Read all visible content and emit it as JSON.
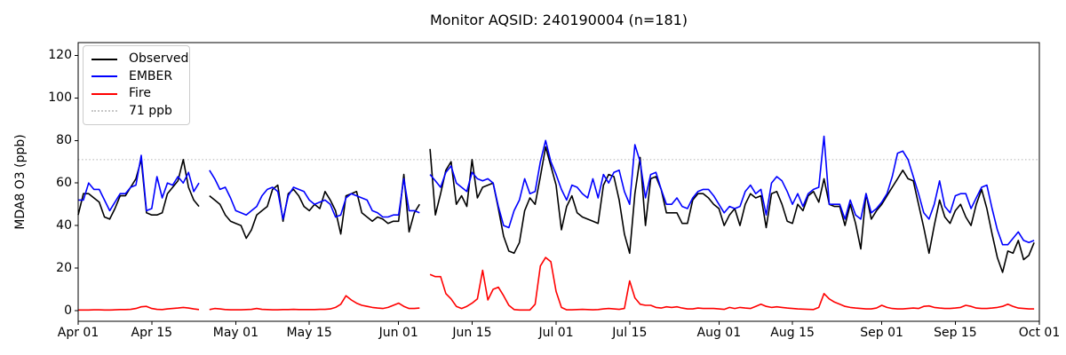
{
  "chart_data": {
    "type": "line",
    "title": "Monitor AQSID: 240190004 (n=181)",
    "ylabel": "MDA8 O3 (ppb)",
    "xlabel": "",
    "grid": false,
    "legend_position": "upper-left",
    "ylim": [
      -5,
      126
    ],
    "y_ticks": [
      0,
      20,
      40,
      60,
      80,
      100,
      120
    ],
    "x_total_days": 183,
    "x_tick_labels": [
      "Apr 01",
      "Apr 15",
      "May 01",
      "May 15",
      "Jun 01",
      "Jun 15",
      "Jul 01",
      "Jul 15",
      "Aug 01",
      "Aug 15",
      "Sep 01",
      "Sep 15",
      "Oct 01"
    ],
    "x_tick_days": [
      0,
      14,
      30,
      44,
      61,
      75,
      91,
      105,
      122,
      136,
      153,
      167,
      183
    ],
    "threshold": {
      "label": "71 ppb",
      "value": 71,
      "color": "#c6c6c6",
      "style": "dotted"
    },
    "series": [
      {
        "name": "Observed",
        "color": "#000000",
        "values": [
          45,
          55,
          55,
          53,
          51,
          44,
          43,
          48,
          54,
          54,
          58,
          62,
          71,
          46,
          45,
          45,
          46,
          55,
          58,
          61,
          71,
          58,
          52,
          49,
          null,
          54,
          52,
          50,
          45,
          42,
          41,
          40,
          34,
          38,
          45,
          47,
          49,
          57,
          59,
          42,
          55,
          57,
          54,
          49,
          47,
          50,
          48,
          56,
          52,
          47,
          36,
          54,
          55,
          56,
          46,
          44,
          42,
          44,
          43,
          41,
          42,
          42,
          64,
          37,
          46,
          50,
          null,
          76,
          45,
          55,
          66,
          70,
          50,
          54,
          49,
          71,
          53,
          58,
          59,
          60,
          48,
          35,
          28,
          27,
          32,
          47,
          53,
          50,
          63,
          77,
          68,
          59,
          38,
          49,
          54,
          46,
          44,
          43,
          42,
          41,
          59,
          64,
          63,
          52,
          36,
          27,
          55,
          72,
          40,
          62,
          63,
          57,
          46,
          46,
          46,
          41,
          41,
          52,
          55,
          55,
          53,
          50,
          48,
          40,
          45,
          48,
          40,
          50,
          55,
          53,
          54,
          39,
          55,
          56,
          50,
          42,
          41,
          50,
          47,
          54,
          56,
          51,
          62,
          50,
          49,
          49,
          40,
          50,
          41,
          29,
          55,
          43,
          47,
          50,
          54,
          58,
          62,
          66,
          62,
          61,
          50,
          39,
          27,
          40,
          52,
          44,
          41,
          47,
          50,
          44,
          40,
          50,
          57,
          48,
          36,
          25,
          18,
          28,
          27,
          33,
          24,
          26,
          32
        ]
      },
      {
        "name": "EMBER",
        "color": "#0000ff",
        "values": [
          52,
          52,
          60,
          57,
          57,
          52,
          47,
          51,
          55,
          55,
          58,
          59,
          73,
          47,
          48,
          63,
          53,
          60,
          59,
          63,
          60,
          65,
          56,
          60,
          null,
          66,
          62,
          57,
          58,
          53,
          47,
          46,
          45,
          47,
          49,
          54,
          57,
          58,
          56,
          43,
          54,
          58,
          57,
          56,
          52,
          50,
          51,
          52,
          50,
          44,
          45,
          53,
          55,
          54,
          53,
          52,
          47,
          46,
          44,
          44,
          45,
          45,
          62,
          47,
          47,
          46,
          null,
          64,
          61,
          58,
          65,
          68,
          60,
          58,
          56,
          65,
          62,
          61,
          62,
          60,
          49,
          40,
          39,
          47,
          52,
          62,
          55,
          56,
          70,
          80,
          70,
          64,
          57,
          52,
          59,
          58,
          55,
          53,
          62,
          53,
          64,
          60,
          65,
          66,
          56,
          50,
          78,
          70,
          53,
          64,
          65,
          57,
          50,
          50,
          53,
          49,
          48,
          53,
          56,
          57,
          57,
          54,
          50,
          46,
          49,
          48,
          49,
          56,
          59,
          55,
          57,
          45,
          60,
          63,
          61,
          56,
          50,
          55,
          49,
          55,
          57,
          58,
          82,
          50,
          50,
          50,
          43,
          52,
          45,
          43,
          55,
          46,
          48,
          51,
          55,
          63,
          74,
          75,
          71,
          63,
          55,
          46,
          43,
          50,
          61,
          49,
          46,
          54,
          55,
          55,
          48,
          53,
          58,
          59,
          48,
          38,
          31,
          31,
          34,
          37,
          33,
          32,
          33
        ]
      },
      {
        "name": "Fire",
        "color": "#ff0000",
        "values": [
          0.3,
          0.3,
          0.3,
          0.4,
          0.4,
          0.3,
          0.3,
          0.4,
          0.5,
          0.5,
          0.6,
          1,
          1.8,
          2,
          1,
          0.6,
          0.5,
          0.8,
          1,
          1.2,
          1.5,
          1.2,
          0.8,
          0.5,
          null,
          0.5,
          1,
          0.8,
          0.5,
          0.4,
          0.4,
          0.4,
          0.5,
          0.6,
          1,
          0.6,
          0.5,
          0.4,
          0.4,
          0.5,
          0.5,
          0.6,
          0.5,
          0.5,
          0.5,
          0.5,
          0.6,
          0.6,
          0.8,
          1.5,
          3,
          7,
          5,
          3.5,
          2.5,
          2,
          1.5,
          1.2,
          1,
          1.5,
          2.5,
          3.5,
          2,
          1,
          1,
          1.2,
          null,
          17,
          16,
          16,
          8,
          5.5,
          2,
          1,
          2,
          3.5,
          5.5,
          19,
          5,
          10,
          11,
          7,
          2.5,
          0.5,
          0.3,
          0.3,
          0.3,
          3,
          21,
          25,
          23,
          9,
          1.5,
          0.4,
          0.4,
          0.5,
          0.6,
          0.5,
          0.4,
          0.5,
          0.8,
          1,
          0.8,
          0.6,
          1,
          14,
          6,
          3,
          2.5,
          2.5,
          1.5,
          1.2,
          1.8,
          1.5,
          1.8,
          1.2,
          0.8,
          0.8,
          1.2,
          1,
          1,
          1,
          0.8,
          0.6,
          1.5,
          1,
          1.5,
          1.2,
          1,
          2,
          3,
          2,
          1.5,
          1.8,
          1.5,
          1.2,
          1,
          0.8,
          0.7,
          0.6,
          0.5,
          1.5,
          8,
          5.5,
          4,
          3,
          2,
          1.5,
          1.2,
          1,
          0.8,
          0.8,
          1.2,
          2.5,
          1.5,
          1,
          0.8,
          0.8,
          1,
          1.2,
          1,
          2,
          2.2,
          1.5,
          1.2,
          1,
          1,
          1.2,
          1.5,
          2.5,
          2,
          1.2,
          1,
          1,
          1.2,
          1.5,
          2,
          3,
          2,
          1.2,
          1,
          0.8,
          0.8
        ]
      }
    ]
  }
}
